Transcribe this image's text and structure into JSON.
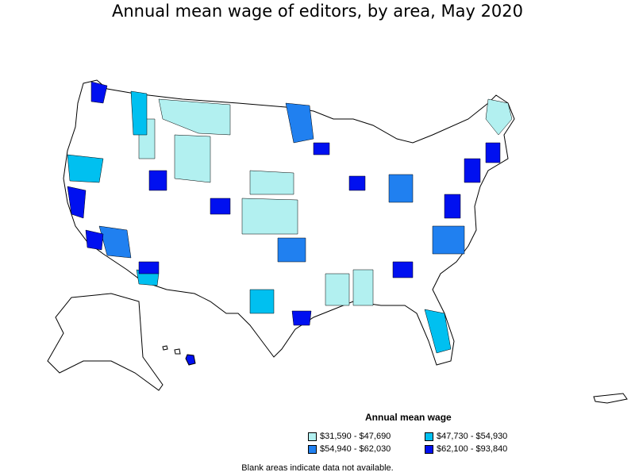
{
  "title": "Annual mean wage of editors, by area, May 2020",
  "legend": {
    "title": "Annual mean wage",
    "items": [
      {
        "label": "$31,590 - $47,690",
        "color": "#b2f0f0"
      },
      {
        "label": "$47,730 - $54,930",
        "color": "#00c0f0"
      },
      {
        "label": "$54,940 - $62,030",
        "color": "#2080f0"
      },
      {
        "label": "$62,100 - $93,840",
        "color": "#0010f0"
      }
    ]
  },
  "note": "Blank areas indicate data not available."
}
